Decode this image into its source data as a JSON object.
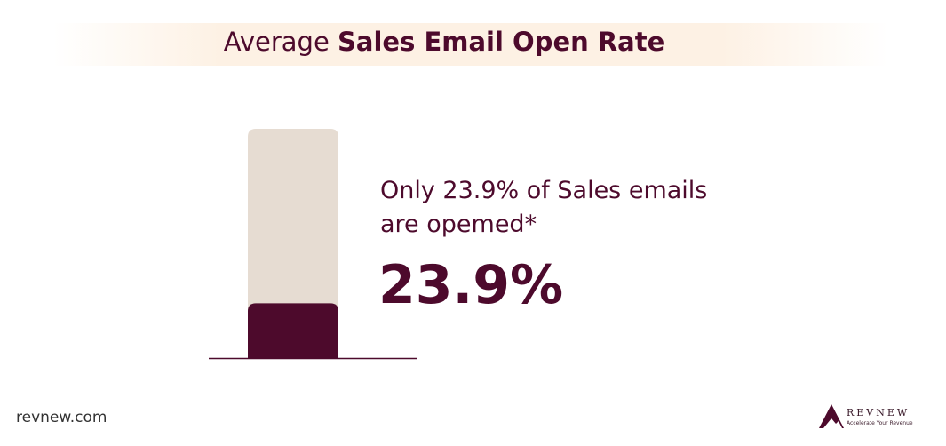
{
  "chart_data": {
    "type": "bar",
    "title": {
      "regular": "Average",
      "bold": "Sales Email Open Rate"
    },
    "annotation": "Only 23.9% of Sales emails are opemed*",
    "values": [
      23.9
    ],
    "value_labels": [
      "23.9%"
    ],
    "color": "#4d0a2c",
    "track_color": "#e6dcd2",
    "ylim": [
      0,
      100
    ]
  },
  "footer": {
    "site": "revnew.com",
    "brand": "REVNEW",
    "tagline": "Accelerate Your Revenue"
  }
}
